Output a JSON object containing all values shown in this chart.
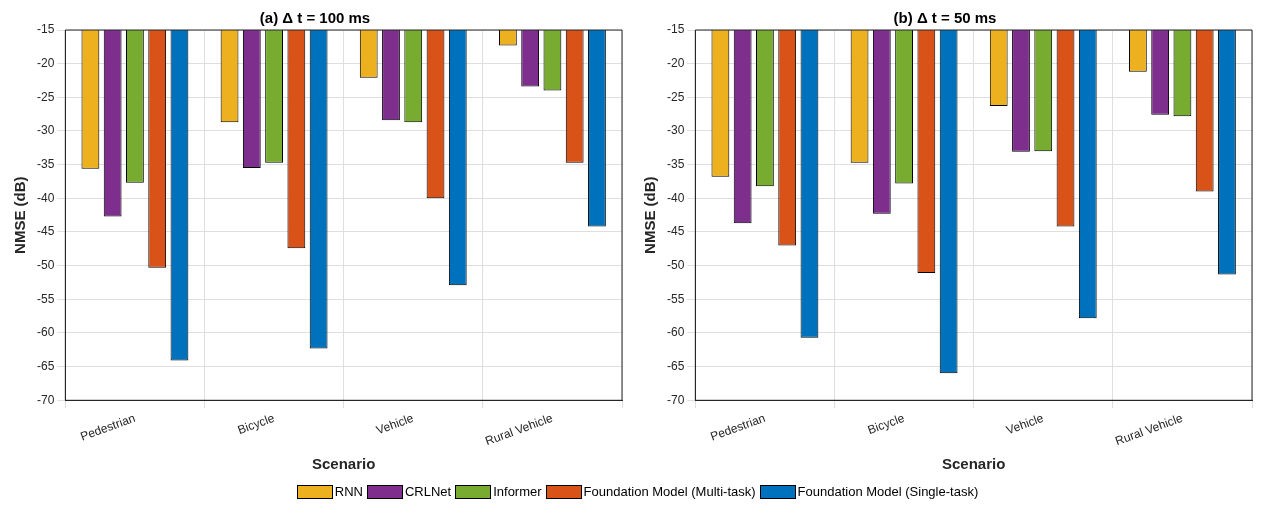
{
  "chart_data": [
    {
      "type": "bar",
      "title": "(a) Δ t = 100 ms",
      "xlabel": "Scenario",
      "ylabel": "NMSE (dB)",
      "categories": [
        "Pedestrian",
        "Bicycle",
        "Vehicle",
        "Rural Vehicle"
      ],
      "ylim": [
        -70,
        -15
      ],
      "yticks": [
        -70,
        -65,
        -60,
        -55,
        -50,
        -45,
        -40,
        -35,
        -30,
        -25,
        -20,
        -15
      ],
      "grid": true,
      "legend": "bottom",
      "series": [
        {
          "name": "RNN",
          "color": "#edb120",
          "values": [
            -35.6,
            -28.7,
            -22.1,
            -17.3
          ]
        },
        {
          "name": "CRLNet",
          "color": "#7e2f8e",
          "values": [
            -42.7,
            -35.5,
            -28.4,
            -23.4
          ]
        },
        {
          "name": "Informer",
          "color": "#77ac30",
          "values": [
            -37.7,
            -34.7,
            -28.7,
            -24.0
          ]
        },
        {
          "name": "Foundation Model (Multi-task)",
          "color": "#d95319",
          "values": [
            -50.3,
            -47.4,
            -40.0,
            -34.7
          ]
        },
        {
          "name": "Foundation Model (Single-task)",
          "color": "#0072bd",
          "values": [
            -64.1,
            -62.3,
            -52.9,
            -44.2
          ]
        }
      ]
    },
    {
      "type": "bar",
      "title": "(b) Δ t = 50 ms",
      "xlabel": "Scenario",
      "ylabel": "NMSE (dB)",
      "categories": [
        "Pedestrian",
        "Bicycle",
        "Vehicle",
        "Rural Vehicle"
      ],
      "ylim": [
        -70,
        -15
      ],
      "yticks": [
        -70,
        -65,
        -60,
        -55,
        -50,
        -45,
        -40,
        -35,
        -30,
        -25,
        -20,
        -15
      ],
      "grid": true,
      "series": [
        {
          "color": "#edb120",
          "values": [
            -36.8,
            -34.7,
            -26.3,
            -21.2
          ]
        },
        {
          "color": "#7e2f8e",
          "values": [
            -43.7,
            -42.3,
            -33.1,
            -27.6
          ]
        },
        {
          "color": "#77ac30",
          "values": [
            -38.2,
            -37.8,
            -33.0,
            -27.8
          ]
        },
        {
          "color": "#d95319",
          "values": [
            -47.0,
            -51.1,
            -44.2,
            -39.0
          ]
        },
        {
          "color": "#0072bd",
          "values": [
            -60.7,
            -66.0,
            -57.8,
            -51.3
          ]
        }
      ]
    }
  ]
}
